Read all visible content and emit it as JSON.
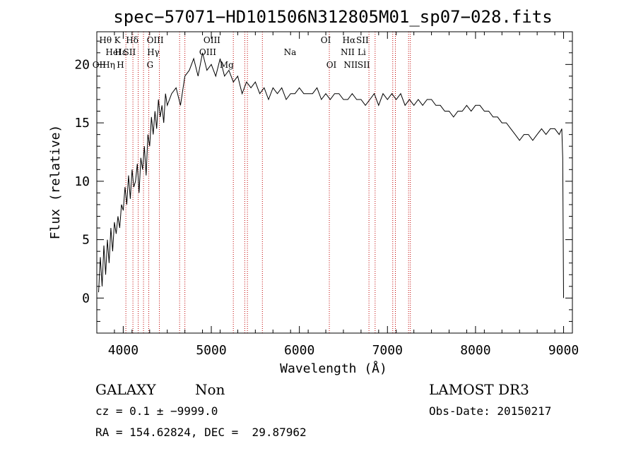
{
  "chart_data": {
    "type": "line",
    "title": "spec−57071−HD101506N312805M01_sp07−028.fits",
    "xlabel": "Wavelength (Å)",
    "ylabel": "Flux (relative)",
    "xlim": [
      3700,
      9100
    ],
    "ylim": [
      -3,
      22.8
    ],
    "xticks": [
      "4000",
      "5000",
      "6000",
      "7000",
      "8000",
      "9000"
    ],
    "yticks": [
      "0",
      "5",
      "10",
      "15",
      "20"
    ],
    "series": [
      {
        "x": [
          3720,
          3740,
          3760,
          3780,
          3800,
          3820,
          3840,
          3860,
          3880,
          3900,
          3920,
          3940,
          3960,
          3980,
          4000,
          4020,
          4040,
          4060,
          4080,
          4100,
          4120,
          4140,
          4160,
          4180,
          4200,
          4220,
          4240,
          4260,
          4280,
          4300,
          4320,
          4340,
          4360,
          4380,
          4400,
          4420,
          4440,
          4460,
          4480,
          4500,
          4550,
          4600,
          4650,
          4700,
          4750,
          4800,
          4850,
          4900,
          4950,
          5000,
          5050,
          5100,
          5150,
          5200,
          5250,
          5300,
          5350,
          5400,
          5450,
          5500,
          5550,
          5600,
          5650,
          5700,
          5750,
          5800,
          5850,
          5900,
          5950,
          6000,
          6050,
          6100,
          6150,
          6200,
          6250,
          6300,
          6350,
          6400,
          6450,
          6500,
          6550,
          6600,
          6650,
          6700,
          6750,
          6800,
          6850,
          6900,
          6950,
          7000,
          7050,
          7100,
          7150,
          7200,
          7250,
          7300,
          7350,
          7400,
          7450,
          7500,
          7550,
          7600,
          7650,
          7700,
          7750,
          7800,
          7850,
          7900,
          7950,
          8000,
          8050,
          8100,
          8150,
          8200,
          8250,
          8300,
          8350,
          8400,
          8450,
          8500,
          8550,
          8600,
          8650,
          8700,
          8750,
          8800,
          8850,
          8900,
          8950,
          8980,
          8990,
          9000
        ],
        "values": [
          0.5,
          3.5,
          1.0,
          4.5,
          2.0,
          5.0,
          3.0,
          6.0,
          4.0,
          6.5,
          5.5,
          7.0,
          6.0,
          8.0,
          7.5,
          9.5,
          8.0,
          10.5,
          8.5,
          11.0,
          9.5,
          10.0,
          11.5,
          9.0,
          12.0,
          11.0,
          13.0,
          10.5,
          14.0,
          13.0,
          15.5,
          14.0,
          16.0,
          14.5,
          17.0,
          15.5,
          16.5,
          15.0,
          17.5,
          16.5,
          17.5,
          18.0,
          16.5,
          19.0,
          19.5,
          20.5,
          19.0,
          21.0,
          19.5,
          20.0,
          19.0,
          20.5,
          19.0,
          19.5,
          18.5,
          19.0,
          17.5,
          18.5,
          18.0,
          18.5,
          17.5,
          18.0,
          17.0,
          18.0,
          17.5,
          18.0,
          17.0,
          17.5,
          17.5,
          18.0,
          17.5,
          17.5,
          17.5,
          18.0,
          17.0,
          17.5,
          17.0,
          17.5,
          17.5,
          17.0,
          17.0,
          17.5,
          17.0,
          17.0,
          16.5,
          17.0,
          17.5,
          16.5,
          17.5,
          17.0,
          17.5,
          17.0,
          17.5,
          16.5,
          17.0,
          16.5,
          17.0,
          16.5,
          17.0,
          17.0,
          16.5,
          16.5,
          16.0,
          16.0,
          15.5,
          16.0,
          16.0,
          16.5,
          16.0,
          16.5,
          16.5,
          16.0,
          16.0,
          15.5,
          15.5,
          15.0,
          15.0,
          14.5,
          14.0,
          13.5,
          14.0,
          14.0,
          13.5,
          14.0,
          14.5,
          14.0,
          14.5,
          14.5,
          14.0,
          14.5,
          12.0,
          0.0
        ]
      }
    ],
    "emission_lines": [
      {
        "label": "OII",
        "x": 3727,
        "row": 2
      },
      {
        "label": "Hθ",
        "x": 3798,
        "row": 0
      },
      {
        "label": "Hη",
        "x": 3836,
        "row": 2
      },
      {
        "label": "Hε",
        "x": 3970,
        "row": 1
      },
      {
        "label": "HeI",
        "x": 3889,
        "row": 1
      },
      {
        "label": "K",
        "x": 3934,
        "row": 0
      },
      {
        "label": "H",
        "x": 3969,
        "row": 2
      },
      {
        "label": "Hδ",
        "x": 4102,
        "row": 0
      },
      {
        "label": "SII",
        "x": 4072,
        "row": 1
      },
      {
        "label": "G",
        "x": 4304,
        "row": 2
      },
      {
        "label": "OIII",
        "x": 4363,
        "row": 0
      },
      {
        "label": "Hγ",
        "x": 4341,
        "row": 1
      },
      {
        "label": "OIII",
        "x": 5007,
        "row": 0
      },
      {
        "label": "OIII",
        "x": 4959,
        "row": 1
      },
      {
        "label": "Mg",
        "x": 5175,
        "row": 2
      },
      {
        "label": "Na",
        "x": 5894,
        "row": 1
      },
      {
        "label": "OI",
        "x": 6300,
        "row": 0
      },
      {
        "label": "OI",
        "x": 6364,
        "row": 2
      },
      {
        "label": "Hα",
        "x": 6563,
        "row": 0
      },
      {
        "label": "NII",
        "x": 6548,
        "row": 1
      },
      {
        "label": "NII",
        "x": 6583,
        "row": 2
      },
      {
        "label": "SII",
        "x": 6716,
        "row": 0
      },
      {
        "label": "Li",
        "x": 6708,
        "row": 1
      },
      {
        "label": "SII",
        "x": 6731,
        "row": 2
      }
    ],
    "line_markers_x": [
      4030,
      4110,
      4170,
      4230,
      4290,
      4410,
      4640,
      4700,
      5250,
      5380,
      5410,
      5580,
      6340,
      6790,
      6860,
      7060,
      7090,
      7240,
      7260
    ]
  },
  "info": {
    "object_class": "GALAXY",
    "subclass": "Non",
    "cz_line": "cz = 0.1 ± −9999.0",
    "radec_line": "RA = 154.62824, DEC =  29.87962",
    "survey": "LAMOST DR3",
    "obs_date": "Obs-Date: 20150217"
  }
}
